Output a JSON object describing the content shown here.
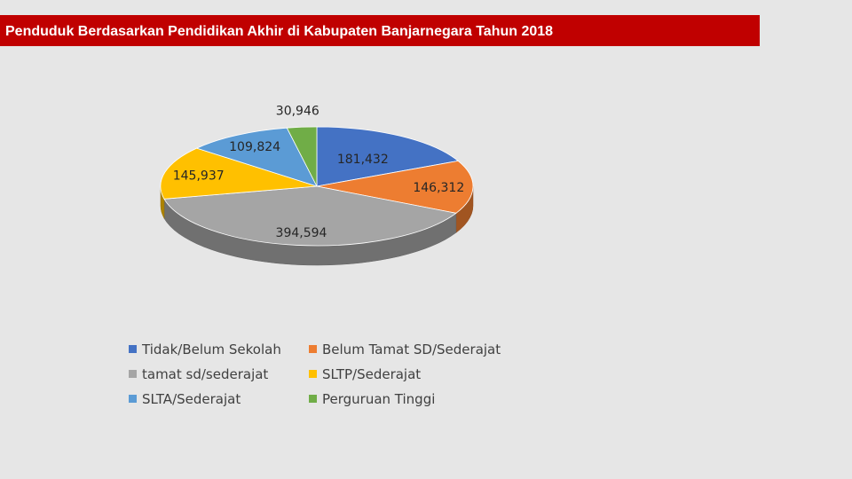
{
  "page": {
    "title": "Penduduk Berdasarkan Pendidikan Akhir di Kabupaten Banjarnegara Tahun 2018"
  },
  "chart_data": {
    "type": "pie",
    "style": "3d",
    "legend_position": "bottom",
    "series": [
      {
        "name": "Tidak/Belum Sekolah",
        "value": 181432,
        "label": "181,432",
        "color": "#4472c4"
      },
      {
        "name": "Belum Tamat SD/Sederajat",
        "value": 146312,
        "label": "146,312",
        "color": "#ed7d31"
      },
      {
        "name": "tamat sd/sederajat",
        "value": 394594,
        "label": "394,594",
        "color": "#a5a5a5"
      },
      {
        "name": "SLTP/Sederajat",
        "value": 145937,
        "label": "145,937",
        "color": "#ffc000"
      },
      {
        "name": "SLTA/Sederajat",
        "value": 109824,
        "label": "109,824",
        "color": "#5b9bd5"
      },
      {
        "name": "Perguruan Tinggi",
        "value": 30946,
        "label": "30,946",
        "color": "#70ad47"
      }
    ]
  }
}
